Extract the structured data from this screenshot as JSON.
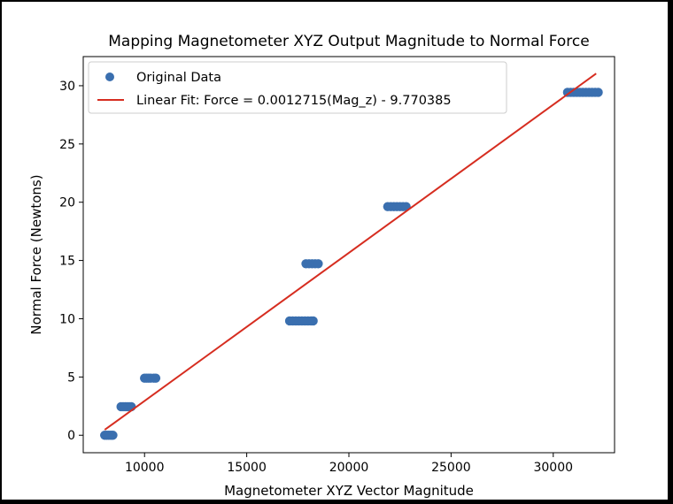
{
  "chart_data": {
    "type": "scatter",
    "title": "Mapping Magnetometer XYZ Output Magnitude to Normal Force",
    "xlabel": "Magnetometer XYZ Vector Magnitude",
    "ylabel": "Normal Force (Newtons)",
    "xlim": [
      7000,
      33000
    ],
    "ylim": [
      -1.5,
      32.5
    ],
    "xticks": [
      10000,
      15000,
      20000,
      25000,
      30000
    ],
    "yticks": [
      0,
      5,
      10,
      15,
      20,
      25,
      30
    ],
    "grid": false,
    "legend_position": "upper-left",
    "series": [
      {
        "name": "Original Data",
        "kind": "scatter",
        "color": "#3a6faf",
        "points": [
          [
            8050,
            0.0
          ],
          [
            8150,
            0.0
          ],
          [
            8250,
            0.0
          ],
          [
            8350,
            0.0
          ],
          [
            8450,
            0.0
          ],
          [
            8850,
            2.45
          ],
          [
            8950,
            2.45
          ],
          [
            9050,
            2.45
          ],
          [
            9150,
            2.45
          ],
          [
            9250,
            2.45
          ],
          [
            9350,
            2.45
          ],
          [
            10000,
            4.9
          ],
          [
            10100,
            4.9
          ],
          [
            10200,
            4.9
          ],
          [
            10300,
            4.9
          ],
          [
            10450,
            4.9
          ],
          [
            10550,
            4.9
          ],
          [
            17100,
            9.81
          ],
          [
            17250,
            9.81
          ],
          [
            17400,
            9.81
          ],
          [
            17550,
            9.81
          ],
          [
            17700,
            9.81
          ],
          [
            17850,
            9.81
          ],
          [
            18000,
            9.81
          ],
          [
            18150,
            9.81
          ],
          [
            18250,
            9.81
          ],
          [
            17900,
            14.72
          ],
          [
            18050,
            14.72
          ],
          [
            18200,
            14.72
          ],
          [
            18350,
            14.72
          ],
          [
            18500,
            14.72
          ],
          [
            21900,
            19.62
          ],
          [
            22050,
            19.62
          ],
          [
            22200,
            19.62
          ],
          [
            22350,
            19.62
          ],
          [
            22500,
            19.62
          ],
          [
            22650,
            19.62
          ],
          [
            22800,
            19.62
          ],
          [
            30700,
            29.43
          ],
          [
            30850,
            29.43
          ],
          [
            31000,
            29.43
          ],
          [
            31150,
            29.43
          ],
          [
            31300,
            29.43
          ],
          [
            31450,
            29.43
          ],
          [
            31600,
            29.43
          ],
          [
            31750,
            29.43
          ],
          [
            31900,
            29.43
          ],
          [
            32050,
            29.43
          ],
          [
            32200,
            29.43
          ]
        ]
      },
      {
        "name": "Linear Fit: Force = 0.0012715(Mag_z) - 9.770385",
        "kind": "line",
        "color": "#d62d20",
        "slope": 0.0012715,
        "intercept": -9.770385,
        "x_range": [
          8050,
          32100
        ]
      }
    ]
  }
}
